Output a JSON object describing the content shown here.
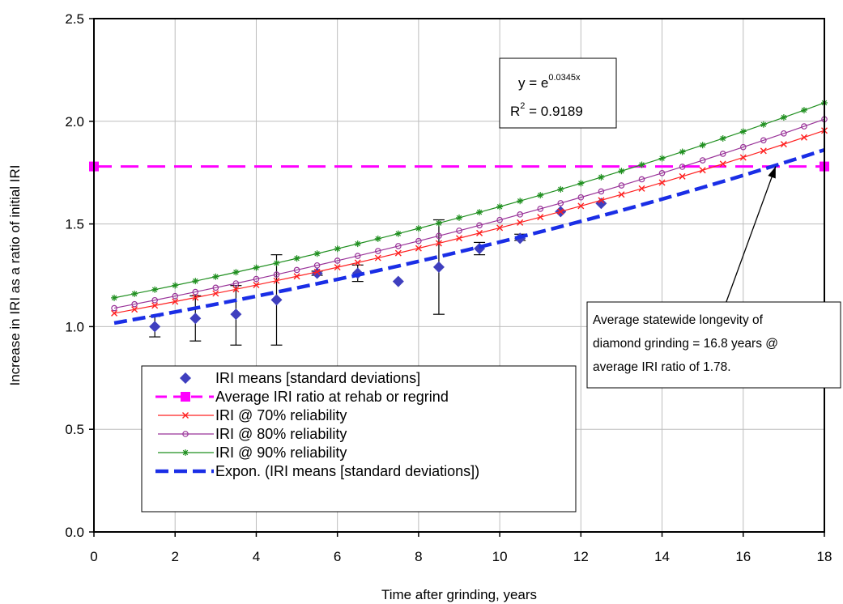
{
  "chart_data": {
    "type": "scatter",
    "title": "",
    "xlabel": "Time after grinding, years",
    "ylabel": "Increase in IRI as a ratio of initial IRI",
    "xlim": [
      0,
      18
    ],
    "ylim": [
      0,
      2.5
    ],
    "x_ticks": [
      "0",
      "2",
      "4",
      "6",
      "8",
      "10",
      "12",
      "14",
      "16",
      "18"
    ],
    "y_ticks": [
      "0.0",
      "0.5",
      "1.0",
      "1.5",
      "2.0",
      "2.5"
    ],
    "grid": true,
    "legend_position": "bottom-left",
    "equation": {
      "prefix": "y = e",
      "exponent": "0.0345x",
      "r2_prefix": "R",
      "r2_sup": "2",
      "r2_value": " = 0.9189"
    },
    "annotation": {
      "lines": [
        "Average statewide longevity of",
        "diamond grinding = 16.8 years @",
        "average IRI ratio of 1.78."
      ],
      "arrow_target": [
        16.8,
        1.78
      ]
    },
    "series": [
      {
        "name": "IRI means [standard deviations]",
        "kind": "points",
        "color": "#3f3fbf",
        "x": [
          1.5,
          2.5,
          3.5,
          4.5,
          5.5,
          6.5,
          7.5,
          8.5,
          9.5,
          10.5,
          11.5,
          12.5
        ],
        "y": [
          1.0,
          1.04,
          1.06,
          1.13,
          1.26,
          1.26,
          1.22,
          1.29,
          1.38,
          1.43,
          1.56,
          1.6
        ],
        "err_low": [
          0.95,
          0.93,
          0.91,
          0.91,
          1.25,
          1.22,
          1.22,
          1.06,
          1.35,
          1.42,
          1.56,
          1.6
        ],
        "err_high": [
          1.05,
          1.15,
          1.2,
          1.35,
          1.27,
          1.3,
          1.22,
          1.52,
          1.41,
          1.45,
          1.56,
          1.6
        ]
      },
      {
        "name": "Average IRI ratio at rehab or regrind",
        "kind": "hline",
        "color": "#ff00ff",
        "x": [
          0,
          18
        ],
        "y": [
          1.78,
          1.78
        ]
      },
      {
        "name": "IRI @ 70% reliability",
        "kind": "curve",
        "color": "#ff2020",
        "marker": "x",
        "x_start": 0.5,
        "x_end": 18,
        "x_step": 0.5,
        "y_start": 1.065,
        "y_end": 1.955
      },
      {
        "name": "IRI @ 80% reliability",
        "kind": "curve",
        "color": "#993399",
        "marker": "circle",
        "x_start": 0.5,
        "x_end": 18,
        "x_step": 0.5,
        "y_start": 1.09,
        "y_end": 2.01
      },
      {
        "name": "IRI @ 90% reliability",
        "kind": "curve",
        "color": "#1f8f1f",
        "marker": "star",
        "x_start": 0.5,
        "x_end": 18,
        "x_step": 0.5,
        "y_start": 1.14,
        "y_end": 2.09
      },
      {
        "name": "Expon. (IRI means [standard deviations])",
        "kind": "trend",
        "color": "#1a2ee6",
        "x_start": 0.5,
        "x_end": 18,
        "coef": 1.0,
        "rate": 0.0345
      }
    ]
  }
}
